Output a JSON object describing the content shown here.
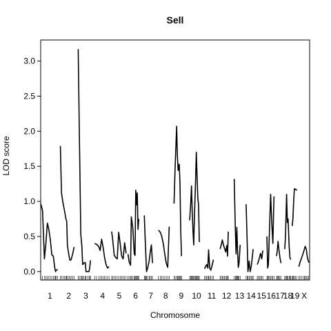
{
  "chart_data": {
    "type": "line",
    "title": "Sell",
    "xlabel": "Chromosome",
    "ylabel": "LOD score",
    "ylim": [
      -0.12,
      3.3
    ],
    "yticks": [
      "0.0",
      "0.5",
      "1.0",
      "1.5",
      "2.0",
      "2.5",
      "3.0"
    ],
    "grid": false,
    "legend": "none",
    "line_color": "#000000",
    "chromosomes": [
      {
        "label": "1",
        "start": 0.0,
        "end": 25.0,
        "points": [
          [
            0,
            0.97
          ],
          [
            2.5,
            0.87
          ],
          [
            5,
            0.18
          ],
          [
            7,
            0.4
          ],
          [
            9,
            0.69
          ],
          [
            11,
            0.6
          ],
          [
            13,
            0.45
          ],
          [
            15,
            0.24
          ],
          [
            17,
            0.22
          ],
          [
            19,
            0.05
          ],
          [
            20,
            0.0
          ],
          [
            21,
            0.02
          ],
          [
            23,
            0.03
          ]
        ]
      },
      {
        "label": "2",
        "start": 26.5,
        "end": 49.0,
        "points": [
          [
            26.5,
            1.79
          ],
          [
            28,
            1.12
          ],
          [
            30,
            0.98
          ],
          [
            32,
            0.87
          ],
          [
            34,
            0.75
          ],
          [
            35,
            0.72
          ],
          [
            36,
            0.37
          ],
          [
            38,
            0.23
          ],
          [
            39.5,
            0.16
          ],
          [
            41,
            0.17
          ],
          [
            43,
            0.25
          ],
          [
            45,
            0.35
          ]
        ]
      },
      {
        "label": "3",
        "start": 50.5,
        "end": 71.0,
        "points": [
          [
            50.5,
            3.17
          ],
          [
            52,
            2.0
          ],
          [
            54,
            0.53
          ],
          [
            55.5,
            0.35
          ],
          [
            56.5,
            0.1
          ],
          [
            58,
            0.12
          ],
          [
            60,
            0.13
          ],
          [
            61,
            0.0
          ],
          [
            63,
            0.0
          ],
          [
            65,
            0.0
          ],
          [
            66,
            0.05
          ],
          [
            67,
            0.16
          ]
        ]
      },
      {
        "label": "4",
        "start": 72.5,
        "end": 94.0,
        "points": [
          [
            72.5,
            0.4
          ],
          [
            75,
            0.39
          ],
          [
            78,
            0.36
          ],
          [
            80,
            0.3
          ],
          [
            82,
            0.46
          ],
          [
            84,
            0.35
          ],
          [
            86,
            0.2
          ],
          [
            88,
            0.1
          ],
          [
            90,
            0.05
          ],
          [
            92,
            0.07
          ]
        ]
      },
      {
        "label": "5",
        "start": 95.5,
        "end": 116.0,
        "points": [
          [
            95.5,
            0.57
          ],
          [
            97,
            0.45
          ],
          [
            99,
            0.23
          ],
          [
            101,
            0.2
          ],
          [
            103,
            0.18
          ],
          [
            105,
            0.56
          ],
          [
            107,
            0.4
          ],
          [
            109,
            0.22
          ],
          [
            111,
            0.18
          ],
          [
            113,
            0.41
          ],
          [
            115,
            0.26
          ]
        ]
      },
      {
        "label": "6",
        "start": 117.5,
        "end": 138.0,
        "points": [
          [
            117.5,
            0.25
          ],
          [
            119,
            0.14
          ],
          [
            121,
            0.09
          ],
          [
            122,
            0.78
          ],
          [
            124,
            0.62
          ],
          [
            126,
            0.25
          ],
          [
            127,
            0.23
          ],
          [
            128,
            1.16
          ],
          [
            129,
            0.95
          ],
          [
            130,
            1.12
          ],
          [
            131,
            0.6
          ],
          [
            132,
            0.75
          ]
        ]
      },
      {
        "label": "7",
        "start": 139.5,
        "end": 157.0,
        "points": [
          [
            139.5,
            0.8
          ],
          [
            140.5,
            0.5
          ],
          [
            141.5,
            0.25
          ],
          [
            142.5,
            0.0
          ],
          [
            144,
            0.05
          ],
          [
            146,
            0.15
          ],
          [
            147.5,
            0.28
          ],
          [
            149,
            0.38
          ],
          [
            150.5,
            0.12
          ]
        ]
      },
      {
        "label": "8",
        "start": 158.5,
        "end": 178.0,
        "points": [
          [
            158.5,
            0.59
          ],
          [
            161,
            0.56
          ],
          [
            163,
            0.5
          ],
          [
            165,
            0.4
          ],
          [
            167,
            0.25
          ],
          [
            169,
            0.12
          ],
          [
            171,
            0.06
          ],
          [
            173,
            0.64
          ]
        ]
      },
      {
        "label": "9",
        "start": 179.5,
        "end": 199.0,
        "points": [
          [
            179.5,
            0.97
          ],
          [
            181,
            1.5
          ],
          [
            183,
            2.07
          ],
          [
            184,
            1.65
          ],
          [
            185,
            1.44
          ],
          [
            186.5,
            1.53
          ],
          [
            187.5,
            1.26
          ],
          [
            188.5,
            0.6
          ],
          [
            189.5,
            0.22
          ]
        ]
      },
      {
        "label": "10",
        "start": 200.5,
        "end": 219.0,
        "points": [
          [
            200.5,
            0.73
          ],
          [
            202,
            0.98
          ],
          [
            203,
            1.22
          ],
          [
            204,
            0.85
          ],
          [
            205,
            0.58
          ],
          [
            206,
            0.38
          ],
          [
            207,
            0.8
          ],
          [
            208.5,
            1.3
          ],
          [
            209.5,
            1.7
          ],
          [
            210.5,
            1.35
          ],
          [
            211.5,
            1.05
          ],
          [
            212.5,
            0.95
          ],
          [
            213.5,
            0.42
          ]
        ]
      },
      {
        "label": "11",
        "start": 220.5,
        "end": 240.0,
        "points": [
          [
            220.5,
            0.04
          ],
          [
            222,
            0.07
          ],
          [
            223.5,
            0.1
          ],
          [
            225,
            0.05
          ],
          [
            226,
            0.31
          ],
          [
            227.5,
            0.05
          ],
          [
            229,
            0.02
          ],
          [
            231,
            0.1
          ],
          [
            232.5,
            0.17
          ]
        ]
      },
      {
        "label": "12",
        "start": 241.5,
        "end": 259.0,
        "points": [
          [
            241.5,
            0.32
          ],
          [
            243,
            0.38
          ],
          [
            244.5,
            0.45
          ],
          [
            246,
            0.38
          ],
          [
            247.5,
            0.33
          ],
          [
            249,
            0.28
          ],
          [
            250.5,
            0.37
          ],
          [
            251.5,
            0.22
          ],
          [
            252.5,
            0.57
          ]
        ]
      },
      {
        "label": "13",
        "start": 260.5,
        "end": 275.0,
        "points": [
          [
            260.5,
            1.32
          ],
          [
            262,
            0.6
          ],
          [
            263,
            0.25
          ],
          [
            264,
            0.63
          ],
          [
            265,
            0.3
          ],
          [
            266,
            0.06
          ],
          [
            267,
            0.12
          ],
          [
            268.5,
            0.38
          ]
        ]
      },
      {
        "label": "14",
        "start": 276.5,
        "end": 290.0,
        "points": [
          [
            276.5,
            0.96
          ],
          [
            278,
            0.4
          ],
          [
            279,
            0.0
          ],
          [
            280.5,
            0.15
          ],
          [
            282,
            0.0
          ],
          [
            283.5,
            0.08
          ],
          [
            285,
            0.22
          ],
          [
            286,
            0.32
          ]
        ]
      },
      {
        "label": "15",
        "start": 291.5,
        "end": 303.0,
        "points": [
          [
            291.5,
            0.1
          ],
          [
            293,
            0.14
          ],
          [
            294.5,
            0.2
          ],
          [
            296,
            0.26
          ],
          [
            297.5,
            0.18
          ],
          [
            299,
            0.3
          ]
        ]
      },
      {
        "label": "16",
        "start": 304.5,
        "end": 316.0,
        "points": [
          [
            304.5,
            0.5
          ],
          [
            305.5,
            0.05
          ],
          [
            306.5,
            0.1
          ],
          [
            308,
            0.6
          ],
          [
            309.5,
            1.1
          ],
          [
            311,
            0.7
          ],
          [
            312.5,
            0.4
          ],
          [
            314,
            1.07
          ]
        ]
      },
      {
        "label": "17",
        "start": 317.5,
        "end": 327.0,
        "points": [
          [
            317.5,
            0.22
          ],
          [
            318.5,
            0.3
          ],
          [
            319.5,
            0.43
          ],
          [
            320.5,
            0.33
          ],
          [
            322,
            0.2
          ],
          [
            323.5,
            0.12
          ]
        ]
      },
      {
        "label": "18",
        "start": 328.5,
        "end": 337.0,
        "points": [
          [
            328.5,
            0.32
          ],
          [
            329.5,
            0.5
          ],
          [
            331,
            1.1
          ],
          [
            332,
            0.7
          ],
          [
            333,
            0.75
          ],
          [
            334.5,
            0.35
          ],
          [
            335.5,
            0.2
          ],
          [
            336.5,
            0.17
          ]
        ]
      },
      {
        "label": "19",
        "start": 338.5,
        "end": 346.0,
        "points": [
          [
            338.5,
            0.65
          ],
          [
            339.5,
            0.75
          ],
          [
            340.5,
            1.0
          ],
          [
            341.5,
            1.18
          ],
          [
            343,
            1.17
          ],
          [
            345,
            1.16
          ]
        ]
      },
      {
        "label": "X",
        "start": 347.5,
        "end": 362.0,
        "points": [
          [
            347.5,
            0.07
          ],
          [
            349,
            0.13
          ],
          [
            351,
            0.19
          ],
          [
            353,
            0.25
          ],
          [
            355,
            0.32
          ],
          [
            356,
            0.36
          ],
          [
            357.5,
            0.32
          ],
          [
            359,
            0.2
          ],
          [
            360.5,
            0.14
          ],
          [
            362,
            0.13
          ]
        ]
      }
    ]
  }
}
